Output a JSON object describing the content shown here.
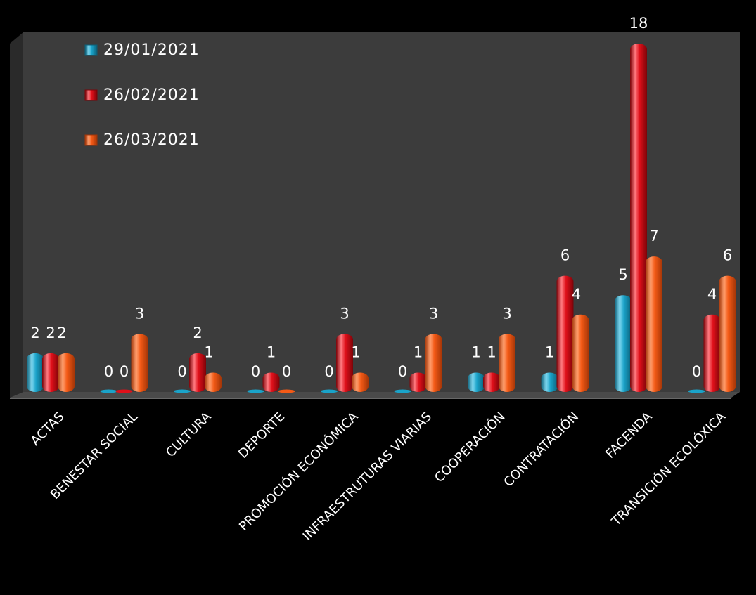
{
  "chart_data": {
    "type": "bar",
    "title": "",
    "xlabel": "",
    "ylabel": "",
    "ylim": [
      0,
      18
    ],
    "grid": false,
    "legend": "top-left",
    "categories": [
      "ACTAS",
      "BENESTAR SOCIAL",
      "CULTURA",
      "DEPORTE",
      "PROMOCIÓN ECONÓMICA",
      "INFRAESTRUTURAS VIARIAS",
      "COOPERACIÓN",
      "CONTRATACIÓN",
      "FACENDA",
      "TRANSICIÓN ECOLÓXICA"
    ],
    "series": [
      {
        "name": "29/01/2021",
        "values": [
          2,
          0,
          0,
          0,
          0,
          0,
          1,
          1,
          5,
          0
        ]
      },
      {
        "name": "26/02/2021",
        "values": [
          2,
          0,
          2,
          1,
          3,
          1,
          1,
          6,
          18,
          4
        ]
      },
      {
        "name": "26/03/2021",
        "values": [
          2,
          3,
          1,
          0,
          1,
          3,
          3,
          4,
          7,
          6
        ]
      }
    ]
  },
  "colors": {
    "series": [
      "#1aa3c9",
      "#e0101a",
      "#f45a16"
    ],
    "series_dark": [
      "#0b5f78",
      "#7c0308",
      "#a33507"
    ],
    "series_light": [
      "#7fd8f0",
      "#ff7a80",
      "#ffa070"
    ],
    "background": "#000000",
    "wall": "#3c3c3c",
    "text": "#ffffff"
  }
}
